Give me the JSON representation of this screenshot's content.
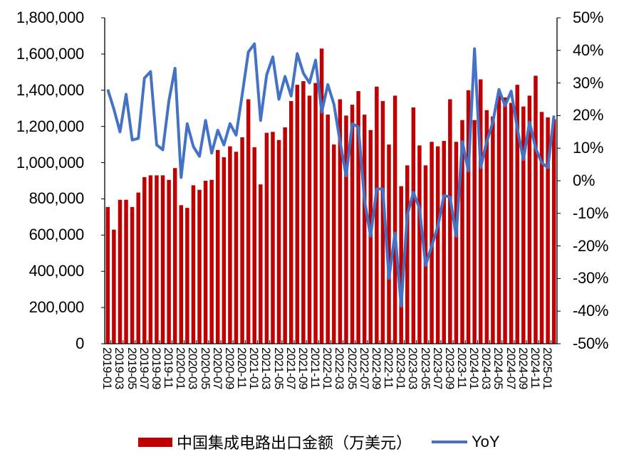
{
  "chart_data": {
    "type": "bar+line",
    "title": "",
    "xlabel": "",
    "ylabel_left": "",
    "ylabel_right": "",
    "ylim_left": [
      0,
      1800000
    ],
    "ylim_right": [
      -0.5,
      0.5
    ],
    "left_ticks": [
      "0",
      "200,000",
      "400,000",
      "600,000",
      "800,000",
      "1,000,000",
      "1,200,000",
      "1,400,000",
      "1,600,000",
      "1,800,000"
    ],
    "right_ticks": [
      "-50%",
      "-40%",
      "-30%",
      "-20%",
      "-10%",
      "0%",
      "10%",
      "20%",
      "30%",
      "40%",
      "50%"
    ],
    "grid": false,
    "legend_position": "bottom",
    "x_tick_labels": [
      "2019-01",
      "2019-03",
      "2019-05",
      "2019-07",
      "2019-09",
      "2019-11",
      "2020-01",
      "2020-03",
      "2020-05",
      "2020-07",
      "2020-09",
      "2020-11",
      "2021-01",
      "2021-03",
      "2021-05",
      "2021-07",
      "2021-09",
      "2021-11",
      "2022-01",
      "2022-03",
      "2022-05",
      "2022-07",
      "2022-09",
      "2022-11",
      "2023-01",
      "2023-03",
      "2023-05",
      "2023-07",
      "2023-09",
      "2023-11",
      "2024-01",
      "2024-03",
      "2024-05",
      "2024-07",
      "2024-09",
      "2024-11",
      "2025-01"
    ],
    "categories": [
      "2019-01",
      "2019-02",
      "2019-03",
      "2019-04",
      "2019-05",
      "2019-06",
      "2019-07",
      "2019-08",
      "2019-09",
      "2019-10",
      "2019-11",
      "2019-12",
      "2020-01",
      "2020-02",
      "2020-03",
      "2020-04",
      "2020-05",
      "2020-06",
      "2020-07",
      "2020-08",
      "2020-09",
      "2020-10",
      "2020-11",
      "2020-12",
      "2021-01",
      "2021-02",
      "2021-03",
      "2021-04",
      "2021-05",
      "2021-06",
      "2021-07",
      "2021-08",
      "2021-09",
      "2021-10",
      "2021-11",
      "2021-12",
      "2022-01",
      "2022-02",
      "2022-03",
      "2022-04",
      "2022-05",
      "2022-06",
      "2022-07",
      "2022-08",
      "2022-09",
      "2022-10",
      "2022-11",
      "2022-12",
      "2023-01",
      "2023-02",
      "2023-03",
      "2023-04",
      "2023-05",
      "2023-06",
      "2023-07",
      "2023-08",
      "2023-09",
      "2023-10",
      "2023-11",
      "2023-12",
      "2024-01",
      "2024-02",
      "2024-03",
      "2024-04",
      "2024-05",
      "2024-06",
      "2024-07",
      "2024-08",
      "2024-09",
      "2024-10",
      "2024-11",
      "2024-12",
      "2025-01",
      "2025-02"
    ],
    "series": [
      {
        "name": "中国集成电路出口金额（万美元）",
        "type": "bar",
        "axis": "left",
        "color": "#c00000",
        "values": [
          755000,
          630000,
          795000,
          795000,
          755000,
          835000,
          920000,
          930000,
          930000,
          930000,
          905000,
          970000,
          765000,
          750000,
          875000,
          850000,
          900000,
          905000,
          1070000,
          1030000,
          1090000,
          1060000,
          1140000,
          1350000,
          1085000,
          880000,
          1165000,
          1170000,
          1125000,
          1195000,
          1340000,
          1430000,
          1450000,
          1370000,
          1440000,
          1630000,
          1265000,
          1100000,
          1350000,
          1260000,
          1320000,
          1395000,
          1265000,
          1180000,
          1420000,
          1340000,
          1100000,
          1370000,
          870000,
          985000,
          1305000,
          1095000,
          985000,
          1115000,
          1090000,
          1120000,
          1350000,
          1115000,
          1235000,
          1400000,
          1235000,
          1460000,
          1290000,
          1255000,
          1390000,
          1360000,
          1330000,
          1430000,
          1310000,
          1370000,
          1480000,
          1280000,
          1250000,
          1240000
        ]
      },
      {
        "name": "YoY",
        "type": "line",
        "axis": "right",
        "color": "#4472c4",
        "values": [
          0.28,
          0.22,
          0.15,
          0.265,
          0.125,
          0.13,
          0.315,
          0.335,
          0.11,
          0.095,
          0.245,
          0.345,
          0.01,
          0.175,
          0.105,
          0.075,
          0.185,
          0.085,
          0.155,
          0.11,
          0.175,
          0.14,
          0.265,
          0.395,
          0.42,
          0.185,
          0.325,
          0.38,
          0.25,
          0.32,
          0.26,
          0.39,
          0.33,
          0.3,
          0.37,
          0.21,
          0.295,
          0.235,
          0.12,
          0.015,
          0.175,
          0.165,
          -0.06,
          -0.17,
          -0.025,
          -0.025,
          -0.3,
          -0.16,
          -0.385,
          -0.105,
          -0.035,
          -0.085,
          -0.26,
          -0.2,
          -0.14,
          -0.045,
          -0.05,
          -0.17,
          0.12,
          0.03,
          0.405,
          0.04,
          0.12,
          0.18,
          0.28,
          0.23,
          0.275,
          0.16,
          0.065,
          0.18,
          0.1,
          0.055,
          0.04,
          0.2
        ]
      }
    ]
  },
  "legend": {
    "bar_label": "中国集成电路出口金额（万美元）",
    "line_label": "YoY"
  }
}
